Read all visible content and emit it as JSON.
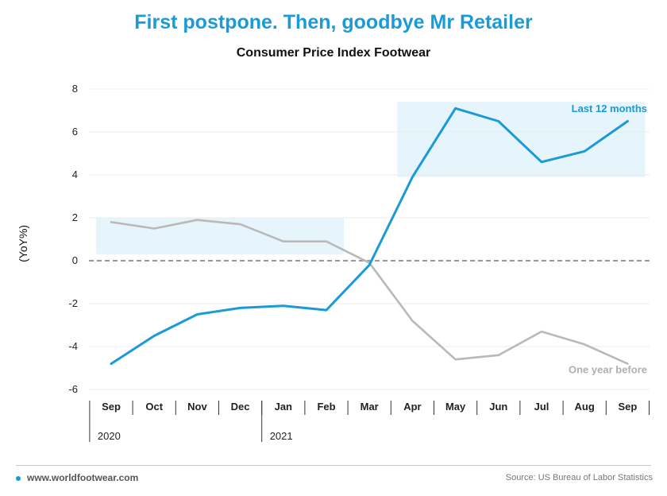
{
  "header": {
    "title": "First postpone. Then, goodbye Mr Retailer",
    "subtitle": "Consumer Price Index Footwear"
  },
  "footer": {
    "website": "www.worldfootwear.com",
    "source": "Source: US Bureau of Labor Statistics"
  },
  "colors": {
    "accent": "#1a9ad6",
    "grey_series": "#b9b9b9",
    "highlight_box": "#e6f4fc",
    "zero_line": "#9a9a9a"
  },
  "chart_data": {
    "type": "line",
    "title": "Consumer Price Index Footwear",
    "ylabel": "(YoY%)",
    "xlabel": "",
    "ylim": [
      -6,
      8
    ],
    "yticks": [
      8,
      6,
      4,
      2,
      0,
      -2,
      -4,
      -6
    ],
    "categories": [
      "Sep",
      "Oct",
      "Nov",
      "Dec",
      "Jan",
      "Feb",
      "Mar",
      "Apr",
      "May",
      "Jun",
      "Jul",
      "Aug",
      "Sep"
    ],
    "year_labels": [
      {
        "label": "2020",
        "start_index": 0
      },
      {
        "label": "2021",
        "start_index": 4
      }
    ],
    "grid": true,
    "series": [
      {
        "name": "Last 12 months",
        "color": "#1a9ad6",
        "values": [
          -4.8,
          -3.5,
          -2.5,
          -2.2,
          -2.1,
          -2.3,
          -0.2,
          3.9,
          7.1,
          6.5,
          4.6,
          5.1,
          6.5
        ]
      },
      {
        "name": "One year before",
        "color": "#b9b9b9",
        "values": [
          1.8,
          1.5,
          1.9,
          1.7,
          0.9,
          0.9,
          -0.1,
          -2.8,
          -4.6,
          -4.4,
          -3.3,
          -3.9,
          -4.8
        ]
      }
    ],
    "highlight_ranges": [
      {
        "from_index": 0,
        "to_index": 5,
        "y_from": 0.3,
        "y_to": 2.0
      },
      {
        "from_index": 7,
        "to_index": 12,
        "y_from": 3.9,
        "y_to": 7.4
      }
    ]
  }
}
